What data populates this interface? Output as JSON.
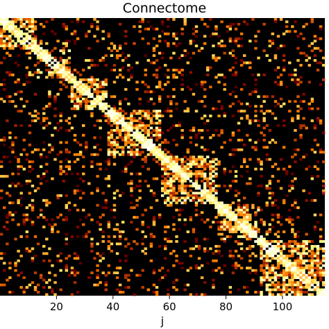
{
  "chart_data": {
    "type": "heatmap",
    "title": "Connectome",
    "xlabel": "j",
    "ylabel": "",
    "n": 115,
    "xlim": [
      0,
      115
    ],
    "xticks": [
      20,
      40,
      60,
      80,
      100
    ],
    "colormap": "afmhot",
    "grid": false,
    "colorbar": false,
    "modules": [
      {
        "range": [
          0,
          13
        ],
        "density": 0.85
      },
      {
        "range": [
          13,
          25
        ],
        "density": 0.8
      },
      {
        "range": [
          25,
          38
        ],
        "density": 0.85
      },
      {
        "range": [
          38,
          57
        ],
        "density": 0.8
      },
      {
        "range": [
          57,
          77
        ],
        "density": 0.85
      },
      {
        "range": [
          77,
          92
        ],
        "density": 0.8
      },
      {
        "range": [
          92,
          115
        ],
        "density": 0.85
      }
    ],
    "background_density": 0.12
  },
  "colors": {
    "background": "#000000",
    "low": "#5a0a00",
    "mid": "#d2541e",
    "high": "#ffe9a8"
  }
}
